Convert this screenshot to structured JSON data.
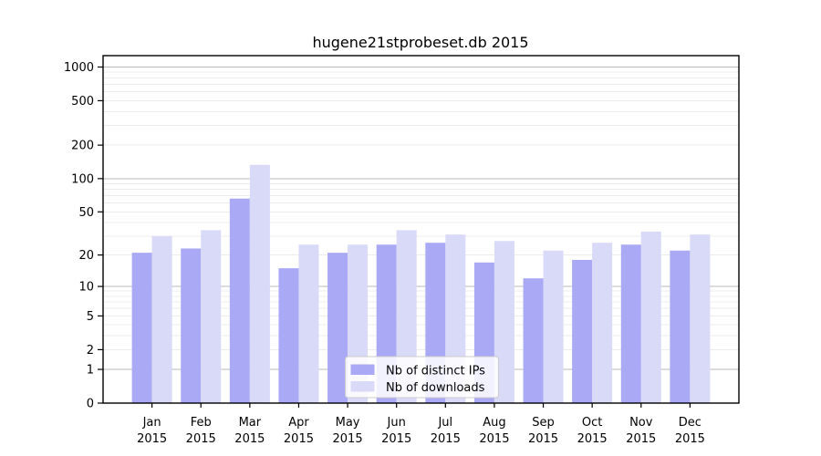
{
  "chart_data": {
    "type": "bar",
    "title": "hugene21stprobeset.db 2015",
    "categories": [
      "Jan",
      "Feb",
      "Mar",
      "Apr",
      "May",
      "Jun",
      "Jul",
      "Aug",
      "Sep",
      "Oct",
      "Nov",
      "Dec"
    ],
    "year_label": "2015",
    "series": [
      {
        "name": "Nb of distinct IPs",
        "color": "#a9a9f5",
        "values": [
          21,
          23,
          66,
          15,
          21,
          25,
          26,
          17,
          12,
          18,
          25,
          22
        ]
      },
      {
        "name": "Nb of downloads",
        "color": "#d9d9f8",
        "values": [
          30,
          34,
          133,
          25,
          25,
          34,
          31,
          27,
          22,
          26,
          33,
          31
        ]
      }
    ],
    "y_scale": "log1p",
    "y_ticks": [
      0,
      1,
      2,
      5,
      10,
      20,
      50,
      100,
      200,
      500,
      1000
    ],
    "y_minor_gridlines": [
      2,
      3,
      4,
      5,
      6,
      7,
      8,
      9,
      20,
      30,
      40,
      50,
      60,
      70,
      80,
      90,
      200,
      300,
      400,
      500,
      600,
      700,
      800,
      900
    ],
    "y_major_gridlines": [
      1,
      10,
      100,
      1000
    ],
    "ylim_top": 1235,
    "grid": true,
    "legend_position": "lower-center",
    "colors": {
      "major_grid": "#b8b8b8",
      "minor_grid": "#ececec",
      "spine": "#000000",
      "legend_border": "#cccccc",
      "legend_bg": "#ffffff"
    }
  }
}
